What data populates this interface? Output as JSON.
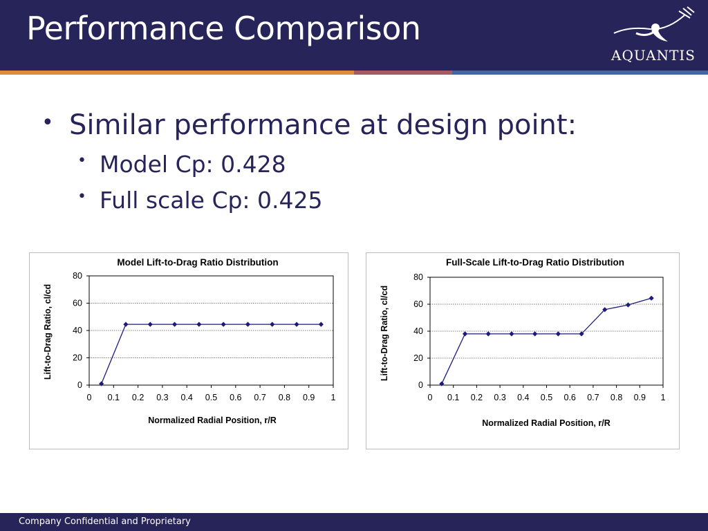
{
  "slide": {
    "title": "Performance Comparison",
    "logo_text": "AQUANTIS",
    "footer": "Company Confidential and Proprietary",
    "colors": {
      "header": "#27245a",
      "series": "#1c1a7a"
    }
  },
  "bullets": {
    "main": "Similar performance at design point:",
    "sub": [
      "Model Cp: 0.428",
      "Full scale Cp: 0.425"
    ]
  },
  "chart_data": [
    {
      "type": "line",
      "title": "Model Lift-to-Drag Ratio Distribution",
      "xlabel": "Normalized Radial Position, r/R",
      "ylabel": "Lift-to-Drag Ratio, cl/cd",
      "xlim": [
        0,
        1
      ],
      "ylim": [
        0,
        80
      ],
      "xticks": [
        "0",
        "0.1",
        "0.2",
        "0.3",
        "0.4",
        "0.5",
        "0.6",
        "0.7",
        "0.8",
        "0.9",
        "1"
      ],
      "yticks": [
        "0",
        "20",
        "40",
        "60",
        "80"
      ],
      "grid": true,
      "series": [
        {
          "x": [
            0.05,
            0.15,
            0.25,
            0.35,
            0.45,
            0.55,
            0.65,
            0.75,
            0.85,
            0.95
          ],
          "y": [
            1,
            44.5,
            44.5,
            44.5,
            44.5,
            44.5,
            44.5,
            44.5,
            44.5,
            44.5
          ]
        }
      ]
    },
    {
      "type": "line",
      "title": "Full-Scale Lift-to-Drag Ratio Distribution",
      "xlabel": "Normalized Radial Position, r/R",
      "ylabel": "Lift-to-Drag Ratio, cl/cd",
      "xlim": [
        0,
        1
      ],
      "ylim": [
        0,
        80
      ],
      "xticks": [
        "0",
        "0.1",
        "0.2",
        "0.3",
        "0.4",
        "0.5",
        "0.6",
        "0.7",
        "0.8",
        "0.9",
        "1"
      ],
      "yticks": [
        "0",
        "20",
        "40",
        "60",
        "80"
      ],
      "grid": true,
      "series": [
        {
          "x": [
            0.05,
            0.15,
            0.25,
            0.35,
            0.45,
            0.55,
            0.65,
            0.75,
            0.85,
            0.95
          ],
          "y": [
            1,
            38,
            38,
            38,
            38,
            38,
            38,
            56,
            59.5,
            64.5
          ]
        }
      ]
    }
  ]
}
